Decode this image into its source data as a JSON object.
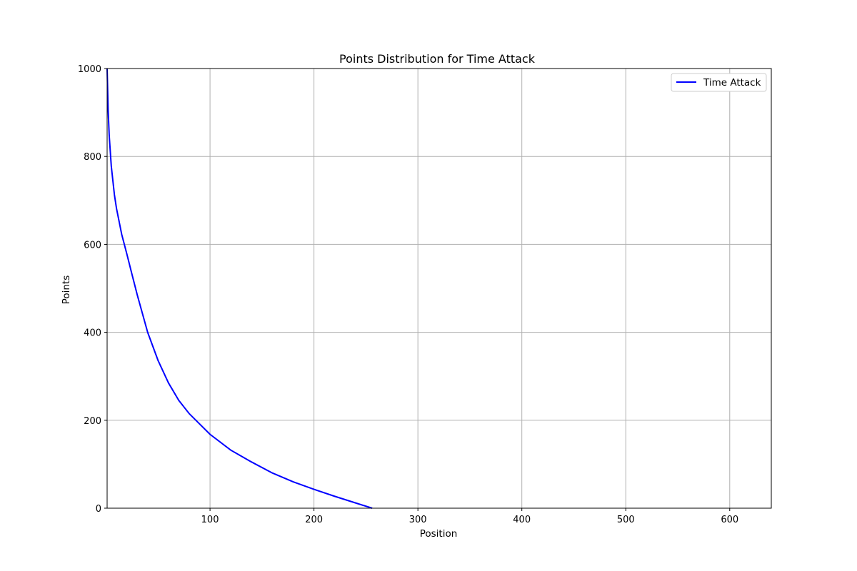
{
  "chart_data": {
    "type": "line",
    "title": "Points Distribution for Time Attack",
    "xlabel": "Position",
    "ylabel": "Points",
    "xlim": [
      1,
      640
    ],
    "ylim": [
      0,
      1000
    ],
    "xticks": [
      100,
      200,
      300,
      400,
      500,
      600
    ],
    "yticks": [
      0,
      200,
      400,
      600,
      800,
      1000
    ],
    "grid": true,
    "legend_position": "top-right",
    "series": [
      {
        "name": "Time Attack",
        "color": "#0000ff",
        "x": [
          1,
          2,
          3,
          5,
          8,
          10,
          15,
          20,
          25,
          30,
          40,
          50,
          60,
          70,
          80,
          100,
          120,
          140,
          160,
          180,
          200,
          220,
          240,
          256
        ],
        "y": [
          1000,
          905,
          848,
          778,
          713,
          682,
          623,
          578,
          531,
          485,
          400,
          336,
          285,
          245,
          215,
          168,
          132,
          105,
          80,
          60,
          43,
          27,
          12,
          0
        ]
      }
    ]
  }
}
